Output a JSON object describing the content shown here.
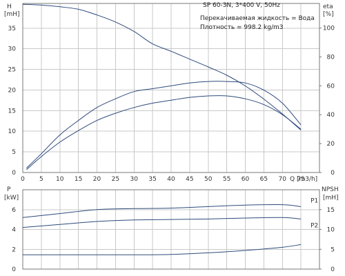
{
  "page": {
    "pump_model": "SP 60-3N, 3*400 V, 50Hz",
    "info_lines": [
      "Перекачиваемая жидкость = Вода",
      "Плотность = 998.2 kg/m3"
    ]
  },
  "colors": {
    "curve": "#2d4a7c",
    "grid": "#c8c8c8",
    "frame": "#777777",
    "text": "#333333"
  },
  "chart_data": [
    {
      "type": "line",
      "title": "",
      "xlabel": "Q [m3/h]",
      "xlim": [
        0,
        80
      ],
      "x_ticks": [
        0,
        5,
        10,
        15,
        20,
        25,
        30,
        35,
        40,
        45,
        50,
        55,
        60,
        65,
        70,
        75
      ],
      "y_axes": [
        {
          "id": "H",
          "side": "left",
          "label": "H",
          "unit": "[mH]",
          "range": [
            0,
            41
          ],
          "ticks": [
            0,
            5,
            10,
            15,
            20,
            25,
            30,
            35
          ]
        },
        {
          "id": "eta",
          "side": "right",
          "label": "eta",
          "unit": "[%]",
          "range": [
            0,
            117
          ],
          "ticks": [
            0,
            20,
            40,
            60,
            80,
            100
          ]
        }
      ],
      "grid": true,
      "series": [
        {
          "name": "",
          "axis": "H",
          "x": [
            0,
            5,
            10,
            15,
            20,
            25,
            30,
            35,
            40,
            45,
            50,
            55,
            60,
            65,
            70,
            75
          ],
          "y": [
            40.8,
            40.6,
            40.2,
            39.6,
            38.2,
            36.5,
            34.2,
            31.2,
            29.4,
            27.5,
            25.6,
            23.6,
            21.0,
            17.8,
            14.2,
            10.3
          ]
        },
        {
          "name": "",
          "axis": "eta",
          "x": [
            1,
            5,
            10,
            15,
            20,
            25,
            30,
            35,
            40,
            45,
            50,
            55,
            60,
            65,
            70,
            75
          ],
          "y": [
            3,
            13,
            26,
            36,
            45,
            51,
            56,
            58,
            60,
            62,
            63,
            63,
            62,
            57,
            48,
            33
          ]
        },
        {
          "name": "",
          "axis": "eta",
          "x": [
            1,
            5,
            10,
            15,
            20,
            25,
            30,
            35,
            40,
            45,
            50,
            55,
            60,
            65,
            70,
            75
          ],
          "y": [
            2,
            11,
            21,
            29,
            36,
            41,
            45,
            48,
            50,
            52,
            53,
            53,
            51,
            47,
            40,
            30
          ]
        }
      ]
    },
    {
      "type": "line",
      "title": "",
      "xlim": [
        0,
        80
      ],
      "y_axes": [
        {
          "id": "P",
          "side": "left",
          "label": "P",
          "unit": "[kW]",
          "range": [
            0,
            8
          ],
          "ticks": [
            0,
            2,
            4,
            6
          ]
        },
        {
          "id": "NPSH",
          "side": "right",
          "label": "NPSH",
          "unit": "[mH]",
          "range": [
            0,
            20
          ],
          "ticks": [
            0,
            5,
            10,
            15
          ]
        }
      ],
      "grid": true,
      "series": [
        {
          "name": "P1",
          "axis": "P",
          "x": [
            0,
            10,
            20,
            30,
            40,
            50,
            60,
            70,
            75
          ],
          "y": [
            5.2,
            5.6,
            6.0,
            6.1,
            6.15,
            6.3,
            6.45,
            6.5,
            6.3
          ]
        },
        {
          "name": "P2",
          "axis": "P",
          "x": [
            0,
            10,
            20,
            30,
            40,
            50,
            60,
            70,
            75
          ],
          "y": [
            4.2,
            4.5,
            4.8,
            4.95,
            5.0,
            5.05,
            5.15,
            5.2,
            5.05
          ]
        },
        {
          "name": "",
          "axis": "NPSH",
          "x": [
            0,
            10,
            20,
            30,
            40,
            50,
            60,
            70,
            75
          ],
          "y": [
            3.6,
            3.6,
            3.6,
            3.6,
            3.7,
            4.1,
            4.7,
            5.5,
            6.2
          ]
        }
      ]
    }
  ]
}
